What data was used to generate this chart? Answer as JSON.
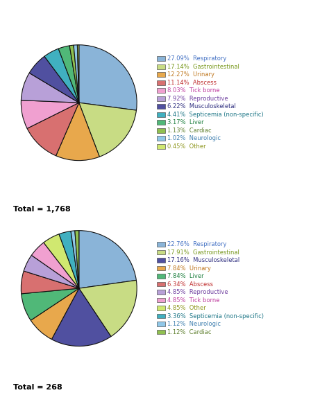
{
  "chart1": {
    "total": "1,768",
    "slices": [
      {
        "label": "Respiratory",
        "pct": 27.09,
        "color": "#8ab4d8"
      },
      {
        "label": "Gastrointestinal",
        "pct": 17.14,
        "color": "#c8dc84"
      },
      {
        "label": "Urinary",
        "pct": 12.27,
        "color": "#e8a84c"
      },
      {
        "label": "Abscess",
        "pct": 11.14,
        "color": "#d87070"
      },
      {
        "label": "Tick borne",
        "pct": 8.03,
        "color": "#f0a0d0"
      },
      {
        "label": "Reproductive",
        "pct": 7.92,
        "color": "#b8a0d8"
      },
      {
        "label": "Musculoskeletal",
        "pct": 6.22,
        "color": "#5050a0"
      },
      {
        "label": "Septicemia (non-specific)",
        "pct": 4.41,
        "color": "#40b0c0"
      },
      {
        "label": "Liver",
        "pct": 3.17,
        "color": "#50b878"
      },
      {
        "label": "Cardiac",
        "pct": 1.13,
        "color": "#90c050"
      },
      {
        "label": "Neurologic",
        "pct": 1.02,
        "color": "#90c8e8"
      },
      {
        "label": "Other",
        "pct": 0.45,
        "color": "#d0e870"
      }
    ],
    "legend_patch_colors": [
      "#8ab4d8",
      "#c8dc84",
      "#e8a84c",
      "#d87070",
      "#f0a0d0",
      "#b8a0d8",
      "#5050a0",
      "#40b0c0",
      "#50b878",
      "#90c050",
      "#90c8e8",
      "#d0e870"
    ],
    "legend_text_colors": [
      "#4472c4",
      "#7a9a20",
      "#c07820",
      "#c03030",
      "#c040a0",
      "#7040a0",
      "#303080",
      "#207888",
      "#208040",
      "#608030",
      "#4080b0",
      "#909820"
    ]
  },
  "chart2": {
    "total": "268",
    "slices": [
      {
        "label": "Respiratory",
        "pct": 22.76,
        "color": "#8ab4d8"
      },
      {
        "label": "Gastrointestinal",
        "pct": 17.91,
        "color": "#c8dc84"
      },
      {
        "label": "Musculoskeletal",
        "pct": 17.16,
        "color": "#5050a0"
      },
      {
        "label": "Urinary",
        "pct": 7.84,
        "color": "#e8a84c"
      },
      {
        "label": "Liver",
        "pct": 7.84,
        "color": "#50b878"
      },
      {
        "label": "Abscess",
        "pct": 6.34,
        "color": "#d87070"
      },
      {
        "label": "Reproductive",
        "pct": 4.85,
        "color": "#b8a0d8"
      },
      {
        "label": "Tick borne",
        "pct": 4.85,
        "color": "#f0a0d0"
      },
      {
        "label": "Other",
        "pct": 4.85,
        "color": "#d0e870"
      },
      {
        "label": "Septicemia (non-specific)",
        "pct": 3.36,
        "color": "#40b0c0"
      },
      {
        "label": "Neurologic",
        "pct": 1.12,
        "color": "#90c8e8"
      },
      {
        "label": "Cardiac",
        "pct": 1.12,
        "color": "#90c050"
      }
    ],
    "legend_patch_colors": [
      "#8ab4d8",
      "#c8dc84",
      "#5050a0",
      "#e8a84c",
      "#50b878",
      "#d87070",
      "#b8a0d8",
      "#f0a0d0",
      "#d0e870",
      "#40b0c0",
      "#90c8e8",
      "#90c050"
    ],
    "legend_text_colors": [
      "#4472c4",
      "#7a9a20",
      "#303080",
      "#c07820",
      "#208040",
      "#c03030",
      "#7040a0",
      "#c040a0",
      "#909820",
      "#207888",
      "#4080b0",
      "#608030"
    ]
  },
  "background_color": "#ffffff"
}
